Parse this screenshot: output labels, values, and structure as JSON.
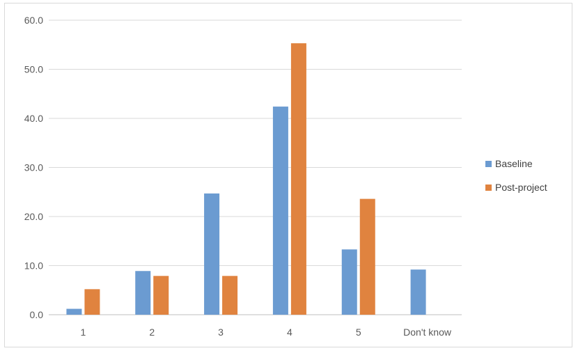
{
  "chart_data": {
    "type": "bar",
    "title": "",
    "xlabel": "",
    "ylabel": "",
    "categories": [
      "1",
      "2",
      "3",
      "4",
      "5",
      "Don't know"
    ],
    "series": [
      {
        "name": "Baseline",
        "color": "#6b9bd1",
        "values": [
          1.2,
          8.9,
          24.7,
          42.4,
          13.3,
          9.2
        ]
      },
      {
        "name": "Post-project",
        "color": "#e0833f",
        "values": [
          5.2,
          7.9,
          7.9,
          55.3,
          23.6,
          0
        ]
      }
    ],
    "ylim": [
      0,
      60
    ],
    "yticks": [
      "0.0",
      "10.0",
      "20.0",
      "30.0",
      "40.0",
      "50.0",
      "60.0"
    ],
    "grid": true,
    "legend_position": "right"
  }
}
